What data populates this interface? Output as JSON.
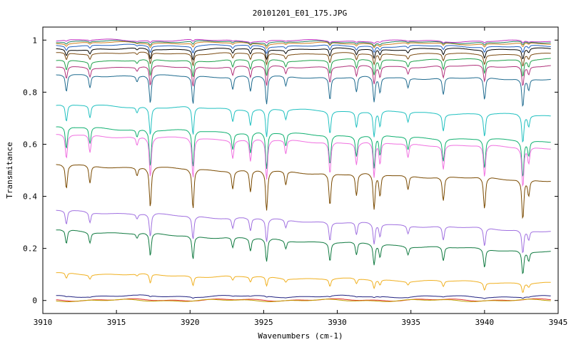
{
  "chart_data": {
    "type": "line",
    "title": "20101201_E01_175.JPG",
    "xlabel": "Wavenumbers (cm-1)",
    "ylabel": "Transmitance",
    "xlim": [
      3910,
      3945
    ],
    "ylim": [
      -0.05,
      1.05
    ],
    "xticks": [
      "3910",
      "3915",
      "3920",
      "3925",
      "3930",
      "3935",
      "3940",
      "3945"
    ],
    "yticks": [
      "0",
      "0.2",
      "0.4",
      "0.6",
      "0.8",
      "1"
    ],
    "grid": false,
    "legend": "none",
    "absorption_lines": [
      {
        "x": 3911.6,
        "w": 0.6
      },
      {
        "x": 3913.2,
        "w": 0.45
      },
      {
        "x": 3916.4,
        "w": 0.2
      },
      {
        "x": 3917.3,
        "w": 1.0
      },
      {
        "x": 3920.2,
        "w": 1.0
      },
      {
        "x": 3922.9,
        "w": 0.45
      },
      {
        "x": 3924.1,
        "w": 0.55
      },
      {
        "x": 3925.2,
        "w": 1.0
      },
      {
        "x": 3926.5,
        "w": 0.35
      },
      {
        "x": 3929.5,
        "w": 0.8
      },
      {
        "x": 3931.3,
        "w": 0.55
      },
      {
        "x": 3932.5,
        "w": 0.9
      },
      {
        "x": 3932.9,
        "w": 0.55
      },
      {
        "x": 3934.8,
        "w": 0.35
      },
      {
        "x": 3937.2,
        "w": 0.6
      },
      {
        "x": 3940.0,
        "w": 0.8
      },
      {
        "x": 3942.6,
        "w": 1.0
      },
      {
        "x": 3943.0,
        "w": 0.4
      }
    ],
    "series": [
      {
        "color": "#1f6b8f",
        "start": 0.865,
        "end": 0.85,
        "depth": 0.085
      },
      {
        "color": "#b0307a",
        "start": 0.895,
        "end": 0.9,
        "depth": 0.06
      },
      {
        "color": "#1ea04a",
        "start": 0.92,
        "end": 0.925,
        "depth": 0.05
      },
      {
        "color": "#7a4a10",
        "start": 0.95,
        "end": 0.945,
        "depth": 0.035
      },
      {
        "color": "#000000",
        "start": 0.965,
        "end": 0.965,
        "depth": 0.03
      },
      {
        "color": "#2060c0",
        "start": 0.98,
        "end": 0.975,
        "depth": 0.02
      },
      {
        "color": "#d08020",
        "start": 0.99,
        "end": 0.985,
        "depth": 0.012
      },
      {
        "color": "#208060",
        "start": 0.995,
        "end": 0.99,
        "depth": 0.01
      },
      {
        "color": "#c030c0",
        "start": 1.0,
        "end": 0.995,
        "depth": 0.006
      },
      {
        "color": "#20c0c0",
        "start": 0.75,
        "end": 0.71,
        "depth": 0.085
      },
      {
        "color": "#10b070",
        "start": 0.665,
        "end": 0.61,
        "depth": 0.11
      },
      {
        "color": "#f070e0",
        "start": 0.635,
        "end": 0.585,
        "depth": 0.12
      },
      {
        "color": "#7a4a00",
        "start": 0.52,
        "end": 0.46,
        "depth": 0.12
      },
      {
        "color": "#a070e0",
        "start": 0.345,
        "end": 0.265,
        "depth": 0.07
      },
      {
        "color": "#107a40",
        "start": 0.27,
        "end": 0.185,
        "depth": 0.07
      },
      {
        "color": "#f0b020",
        "start": 0.105,
        "end": 0.065,
        "depth": 0.028
      },
      {
        "color": "#202080",
        "start": 0.017,
        "end": 0.014,
        "depth": 0.003
      },
      {
        "color": "#e03030",
        "start": 0.002,
        "end": 0.002,
        "depth": 0.0
      },
      {
        "color": "#c0a000",
        "start": 0.0,
        "end": 0.0,
        "depth": 0.0
      }
    ]
  }
}
